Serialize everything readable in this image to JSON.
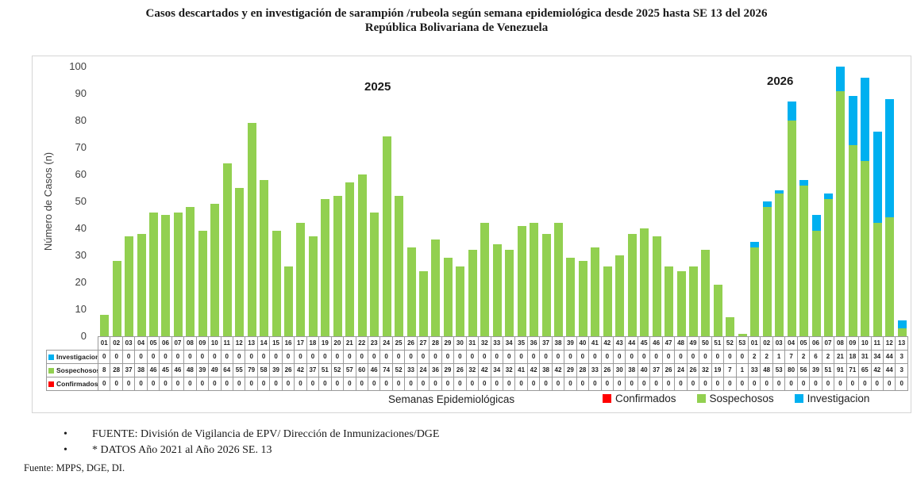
{
  "title": {
    "line1": "Casos descartados y en investigación de sarampión /rubeola según semana epidemiológica desde 2025 hasta SE 13 del 2026",
    "line2": "República Bolivariana de Venezuela"
  },
  "chart_data": {
    "type": "bar",
    "stacked": true,
    "title": "Casos descartados y en investigación de sarampión /rubeola según semana epidemiológica desde 2025 hasta SE 13 del 2026 — República Bolivariana de Venezuela",
    "xlabel": "Semanas Epidemiológicas",
    "ylabel": "Número de Casos (n)",
    "ylim": [
      0,
      100
    ],
    "yticks": [
      0,
      10,
      20,
      30,
      40,
      50,
      60,
      70,
      80,
      90,
      100
    ],
    "grid": false,
    "legend_position": "bottom",
    "years": [
      {
        "label": "2025",
        "weeks": 53
      },
      {
        "label": "2026",
        "weeks": 13
      }
    ],
    "categories": [
      "01",
      "02",
      "03",
      "04",
      "05",
      "06",
      "07",
      "08",
      "09",
      "10",
      "11",
      "12",
      "13",
      "14",
      "15",
      "16",
      "17",
      "18",
      "19",
      "20",
      "21",
      "22",
      "23",
      "24",
      "25",
      "26",
      "27",
      "28",
      "29",
      "30",
      "31",
      "32",
      "33",
      "34",
      "35",
      "36",
      "37",
      "38",
      "39",
      "40",
      "41",
      "42",
      "43",
      "44",
      "45",
      "46",
      "47",
      "48",
      "49",
      "50",
      "51",
      "52",
      "53",
      "01",
      "02",
      "03",
      "04",
      "05",
      "06",
      "07",
      "08",
      "09",
      "10",
      "11",
      "12",
      "13"
    ],
    "series": [
      {
        "name": "Investigacion",
        "color": "#00B0F0",
        "values": [
          0,
          0,
          0,
          0,
          0,
          0,
          0,
          0,
          0,
          0,
          0,
          0,
          0,
          0,
          0,
          0,
          0,
          0,
          0,
          0,
          0,
          0,
          0,
          0,
          0,
          0,
          0,
          0,
          0,
          0,
          0,
          0,
          0,
          0,
          0,
          0,
          0,
          0,
          0,
          0,
          0,
          0,
          0,
          0,
          0,
          0,
          0,
          0,
          0,
          0,
          0,
          0,
          0,
          2,
          2,
          1,
          7,
          2,
          6,
          2,
          21,
          18,
          31,
          34,
          44,
          3
        ]
      },
      {
        "name": "Sospechosos",
        "color": "#92D050",
        "values": [
          8,
          28,
          37,
          38,
          46,
          45,
          46,
          48,
          39,
          49,
          64,
          55,
          79,
          58,
          39,
          26,
          42,
          37,
          51,
          52,
          57,
          60,
          46,
          74,
          52,
          33,
          24,
          36,
          29,
          26,
          32,
          42,
          34,
          32,
          41,
          42,
          38,
          42,
          29,
          28,
          33,
          26,
          30,
          38,
          40,
          37,
          26,
          24,
          26,
          32,
          19,
          7,
          1,
          33,
          48,
          53,
          80,
          56,
          39,
          51,
          91,
          71,
          65,
          42,
          44,
          3
        ]
      },
      {
        "name": "Confirmados",
        "color": "#FF0000",
        "values": [
          0,
          0,
          0,
          0,
          0,
          0,
          0,
          0,
          0,
          0,
          0,
          0,
          0,
          0,
          0,
          0,
          0,
          0,
          0,
          0,
          0,
          0,
          0,
          0,
          0,
          0,
          0,
          0,
          0,
          0,
          0,
          0,
          0,
          0,
          0,
          0,
          0,
          0,
          0,
          0,
          0,
          0,
          0,
          0,
          0,
          0,
          0,
          0,
          0,
          0,
          0,
          0,
          0,
          0,
          0,
          0,
          0,
          0,
          0,
          0,
          0,
          0,
          0,
          0,
          0,
          0
        ]
      }
    ],
    "stack_order_bottom_to_top": [
      "Confirmados",
      "Sospechosos",
      "Investigacion"
    ],
    "legend": [
      {
        "label": "Confirmados",
        "color": "#FF0000"
      },
      {
        "label": "Sospechosos",
        "color": "#92D050"
      },
      {
        "label": "Investigacion",
        "color": "#00B0F0"
      }
    ]
  },
  "footer": {
    "bullets": [
      "FUENTE: División de Vigilancia de EPV/ Dirección de Inmunizaciones/DGE",
      "* DATOS Año 2021 al Año 2026 SE. 13"
    ],
    "source": "Fuente: MPPS, DGE, DI."
  }
}
